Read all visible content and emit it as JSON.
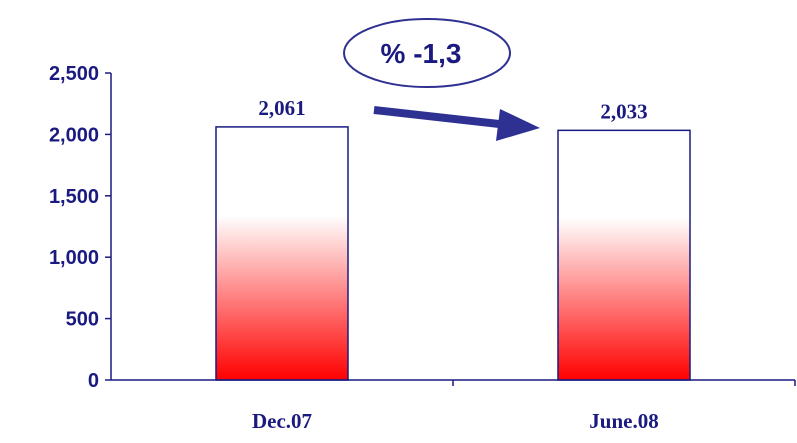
{
  "chart_data": {
    "type": "bar",
    "categories": [
      "Dec.07",
      "June.08"
    ],
    "values": [
      2061,
      2033
    ],
    "data_labels": [
      "2,061",
      "2,033"
    ],
    "ylim": [
      0,
      2500
    ],
    "y_ticks": [
      {
        "value": 0,
        "label": "0"
      },
      {
        "value": 500,
        "label": "500"
      },
      {
        "value": 1000,
        "label": "1,000"
      },
      {
        "value": 1500,
        "label": "1,500"
      },
      {
        "value": 2000,
        "label": "2,000"
      },
      {
        "value": 2500,
        "label": "2,500"
      }
    ],
    "grid": false,
    "annotation": "% -1,3"
  },
  "colors": {
    "axis": "#1a1a80",
    "text": "#1a1a80",
    "bar_outline": "#1a1a80",
    "bar_fill_top": "#ffffff",
    "bar_fill_bottom": "#ff0000",
    "arrow": "#2e3192",
    "callout_outline": "#2e3192"
  }
}
